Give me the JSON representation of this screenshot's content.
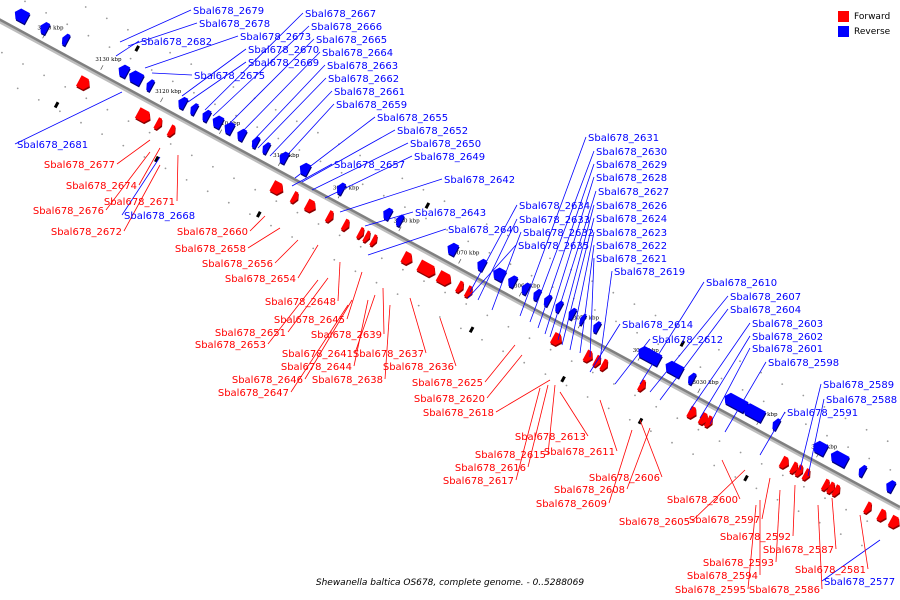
{
  "legend": {
    "items": [
      {
        "label": "Forward",
        "color": "#ff0000"
      },
      {
        "label": "Reverse",
        "color": "#0000ff"
      }
    ]
  },
  "caption": "Shewanella baltica OS678, complete genome. - 0..5288069",
  "colors": {
    "forward": "#ff0000",
    "reverse": "#0000ff",
    "backbone": "#808080"
  },
  "ticks": [
    "3140 kbp",
    "3130 kbp",
    "3120 kbp",
    "3110 kbp",
    "3100 kbp",
    "3090 kbp",
    "3080 kbp",
    "3070 kbp",
    "3060 kbp",
    "3050 kbp",
    "3040 kbp",
    "3030 kbp",
    "3020 kbp",
    "3010 kbp"
  ],
  "reverse_labels": [
    "Sbal678_2679",
    "Sbal678_2678",
    "Sbal678_2682",
    "Sbal678_2673",
    "Sbal678_2670",
    "Sbal678_2669",
    "Sbal678_2675",
    "Sbal678_2667",
    "Sbal678_2666",
    "Sbal678_2665",
    "Sbal678_2664",
    "Sbal678_2663",
    "Sbal678_2662",
    "Sbal678_2661",
    "Sbal678_2659",
    "Sbal678_2681",
    "Sbal678_2655",
    "Sbal678_2652",
    "Sbal678_2650",
    "Sbal678_2657",
    "Sbal678_2649",
    "Sbal678_2642",
    "Sbal678_2668",
    "Sbal678_2643",
    "Sbal678_2640",
    "Sbal678_2634",
    "Sbal678_2633",
    "Sbal678_2632",
    "Sbal678_2635",
    "Sbal678_2631",
    "Sbal678_2630",
    "Sbal678_2629",
    "Sbal678_2628",
    "Sbal678_2627",
    "Sbal678_2626",
    "Sbal678_2624",
    "Sbal678_2623",
    "Sbal678_2622",
    "Sbal678_2621",
    "Sbal678_2619",
    "Sbal678_2610",
    "Sbal678_2607",
    "Sbal678_2604",
    "Sbal678_2614",
    "Sbal678_2612",
    "Sbal678_2603",
    "Sbal678_2602",
    "Sbal678_2601",
    "Sbal678_2598",
    "Sbal678_2589",
    "Sbal678_2588",
    "Sbal678_2591",
    "Sbal678_2577"
  ],
  "forward_labels": [
    "Sbal678_2677",
    "Sbal678_2674",
    "Sbal678_2671",
    "Sbal678_2676",
    "Sbal678_2672",
    "Sbal678_2660",
    "Sbal678_2658",
    "Sbal678_2656",
    "Sbal678_2654",
    "Sbal678_2648",
    "Sbal678_2645",
    "Sbal678_2651",
    "Sbal678_2653",
    "Sbal678_2639",
    "Sbal678_2641",
    "Sbal678_2637",
    "Sbal678_2644",
    "Sbal678_2636",
    "Sbal678_2646",
    "Sbal678_2638",
    "Sbal678_2647",
    "Sbal678_2625",
    "Sbal678_2620",
    "Sbal678_2618",
    "Sbal678_2613",
    "Sbal678_2615",
    "Sbal678_2611",
    "Sbal678_2616",
    "Sbal678_2617",
    "Sbal678_2606",
    "Sbal678_2608",
    "Sbal678_2609",
    "Sbal678_2600",
    "Sbal678_2605",
    "Sbal678_2597",
    "Sbal678_2592",
    "Sbal678_2593",
    "Sbal678_2587",
    "Sbal678_2594",
    "Sbal678_2581",
    "Sbal678_2595",
    "Sbal678_2586"
  ]
}
